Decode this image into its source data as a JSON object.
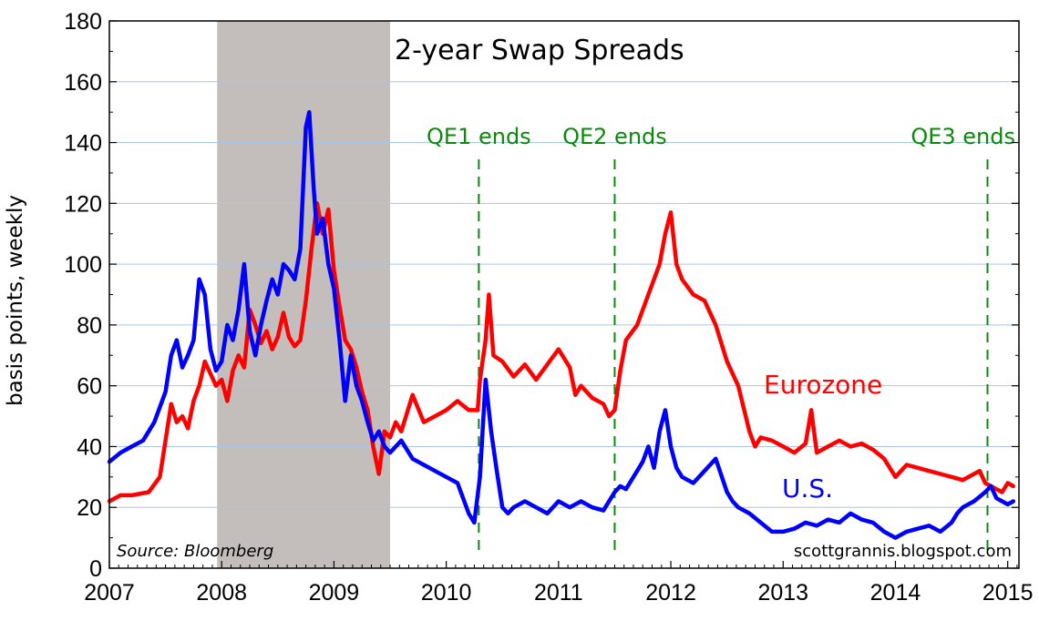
{
  "chart_data": {
    "type": "line",
    "title": "2-year Swap Spreads",
    "ylabel": "basis points, weekly",
    "xlabel": "",
    "ylim": [
      0,
      180
    ],
    "xlim": [
      2007,
      2015.1
    ],
    "y_ticks": [
      "0",
      "20",
      "40",
      "60",
      "80",
      "100",
      "120",
      "140",
      "160",
      "180"
    ],
    "x_ticks": [
      "2007",
      "2008",
      "2009",
      "2010",
      "2011",
      "2012",
      "2013",
      "2014",
      "2015"
    ],
    "grid": true,
    "shaded_region": {
      "start": 2007.96,
      "end": 2009.5,
      "color": "#c3bebb",
      "meaning": "recession"
    },
    "source": "Source: Bloomberg",
    "credit": "scottgrannis.blogspot.com",
    "annotations": [
      {
        "label": "QE1 ends",
        "x": 2010.29,
        "color": "#0a8a0a"
      },
      {
        "label": "QE2 ends",
        "x": 2011.5,
        "color": "#0a8a0a"
      },
      {
        "label": "QE3 ends",
        "x": 2014.82,
        "color": "#0a8a0a"
      }
    ],
    "series": [
      {
        "name": "Eurozone",
        "color": "#ff0000",
        "x": [
          2007.0,
          2007.1,
          2007.2,
          2007.35,
          2007.45,
          2007.5,
          2007.55,
          2007.6,
          2007.65,
          2007.7,
          2007.75,
          2007.8,
          2007.85,
          2007.9,
          2007.95,
          2008.0,
          2008.05,
          2008.1,
          2008.15,
          2008.2,
          2008.25,
          2008.3,
          2008.35,
          2008.4,
          2008.45,
          2008.5,
          2008.55,
          2008.6,
          2008.65,
          2008.7,
          2008.75,
          2008.8,
          2008.85,
          2008.9,
          2008.95,
          2009.0,
          2009.05,
          2009.1,
          2009.15,
          2009.2,
          2009.25,
          2009.3,
          2009.35,
          2009.4,
          2009.45,
          2009.5,
          2009.55,
          2009.6,
          2009.7,
          2009.8,
          2009.9,
          2010.0,
          2010.1,
          2010.2,
          2010.28,
          2010.3,
          2010.35,
          2010.38,
          2010.42,
          2010.5,
          2010.6,
          2010.7,
          2010.8,
          2010.9,
          2011.0,
          2011.1,
          2011.15,
          2011.2,
          2011.3,
          2011.4,
          2011.45,
          2011.5,
          2011.55,
          2011.6,
          2011.7,
          2011.8,
          2011.9,
          2011.95,
          2012.0,
          2012.05,
          2012.1,
          2012.2,
          2012.3,
          2012.4,
          2012.5,
          2012.6,
          2012.7,
          2012.75,
          2012.8,
          2012.9,
          2013.0,
          2013.1,
          2013.2,
          2013.25,
          2013.3,
          2013.4,
          2013.5,
          2013.6,
          2013.7,
          2013.8,
          2013.9,
          2014.0,
          2014.1,
          2014.2,
          2014.3,
          2014.4,
          2014.5,
          2014.6,
          2014.7,
          2014.75,
          2014.8,
          2014.85,
          2014.9,
          2014.95,
          2015.0,
          2015.05
        ],
        "values": [
          22,
          24,
          24,
          25,
          30,
          42,
          54,
          48,
          50,
          46,
          55,
          60,
          68,
          64,
          60,
          62,
          55,
          65,
          70,
          66,
          85,
          80,
          74,
          78,
          72,
          76,
          84,
          76,
          73,
          75,
          88,
          105,
          120,
          110,
          118,
          98,
          86,
          75,
          72,
          66,
          58,
          52,
          40,
          31,
          45,
          43,
          48,
          45,
          57,
          48,
          50,
          52,
          55,
          52,
          52,
          62,
          75,
          90,
          70,
          68,
          63,
          67,
          62,
          67,
          72,
          66,
          57,
          60,
          56,
          54,
          50,
          52,
          65,
          75,
          80,
          90,
          100,
          110,
          117,
          100,
          95,
          90,
          88,
          80,
          68,
          60,
          45,
          40,
          43,
          42,
          40,
          38,
          41,
          52,
          38,
          40,
          42,
          40,
          41,
          39,
          36,
          30,
          34,
          33,
          32,
          31,
          30,
          29,
          31,
          32,
          28,
          27,
          26,
          25,
          28,
          27
        ]
      },
      {
        "name": "U.S.",
        "color": "#0000ff",
        "x": [
          2007.0,
          2007.1,
          2007.2,
          2007.3,
          2007.4,
          2007.5,
          2007.55,
          2007.6,
          2007.65,
          2007.7,
          2007.75,
          2007.8,
          2007.85,
          2007.9,
          2007.95,
          2008.0,
          2008.05,
          2008.1,
          2008.15,
          2008.2,
          2008.25,
          2008.3,
          2008.35,
          2008.4,
          2008.45,
          2008.5,
          2008.55,
          2008.6,
          2008.65,
          2008.7,
          2008.75,
          2008.78,
          2008.82,
          2008.85,
          2008.9,
          2008.95,
          2009.0,
          2009.05,
          2009.1,
          2009.15,
          2009.2,
          2009.25,
          2009.3,
          2009.35,
          2009.4,
          2009.45,
          2009.5,
          2009.6,
          2009.7,
          2009.8,
          2009.9,
          2010.0,
          2010.1,
          2010.2,
          2010.25,
          2010.3,
          2010.35,
          2010.4,
          2010.45,
          2010.5,
          2010.55,
          2010.6,
          2010.7,
          2010.8,
          2010.9,
          2011.0,
          2011.1,
          2011.2,
          2011.3,
          2011.4,
          2011.5,
          2011.55,
          2011.6,
          2011.7,
          2011.75,
          2011.8,
          2011.85,
          2011.9,
          2011.95,
          2012.0,
          2012.05,
          2012.1,
          2012.2,
          2012.3,
          2012.4,
          2012.5,
          2012.55,
          2012.6,
          2012.7,
          2012.8,
          2012.9,
          2013.0,
          2013.1,
          2013.2,
          2013.3,
          2013.4,
          2013.5,
          2013.6,
          2013.7,
          2013.8,
          2013.9,
          2014.0,
          2014.1,
          2014.2,
          2014.3,
          2014.4,
          2014.5,
          2014.55,
          2014.6,
          2014.7,
          2014.8,
          2014.85,
          2014.9,
          2014.95,
          2015.0,
          2015.05
        ],
        "values": [
          35,
          38,
          40,
          42,
          48,
          58,
          70,
          75,
          66,
          70,
          75,
          95,
          90,
          72,
          65,
          68,
          80,
          75,
          85,
          100,
          78,
          70,
          80,
          88,
          95,
          90,
          100,
          98,
          95,
          105,
          145,
          150,
          125,
          110,
          115,
          100,
          92,
          75,
          55,
          70,
          60,
          55,
          48,
          42,
          45,
          40,
          38,
          42,
          36,
          34,
          32,
          30,
          28,
          18,
          15,
          30,
          62,
          45,
          32,
          20,
          18,
          20,
          22,
          20,
          18,
          22,
          20,
          22,
          20,
          19,
          25,
          27,
          26,
          32,
          35,
          40,
          33,
          45,
          52,
          40,
          33,
          30,
          28,
          32,
          36,
          25,
          22,
          20,
          18,
          15,
          12,
          12,
          13,
          15,
          14,
          16,
          15,
          18,
          16,
          15,
          12,
          10,
          12,
          13,
          14,
          12,
          15,
          18,
          20,
          22,
          25,
          27,
          23,
          22,
          21,
          22
        ]
      }
    ]
  }
}
